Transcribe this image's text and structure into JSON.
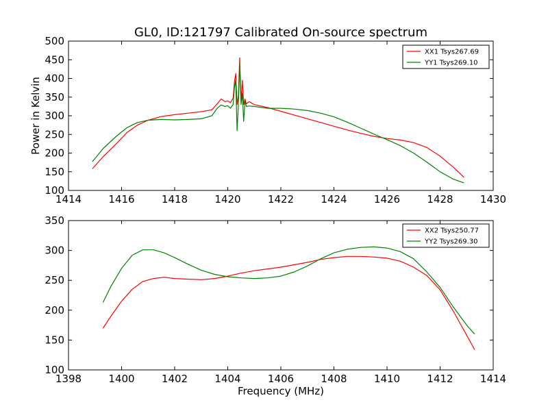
{
  "title": "GL0, ID:121797 Calibrated On-source spectrum",
  "chart_data": [
    {
      "type": "line",
      "ylabel": "Power in Kelvin",
      "xlabel": "",
      "xlim": [
        1414,
        1430
      ],
      "ylim": [
        100,
        500
      ],
      "xticks": [
        "1414",
        "1416",
        "1418",
        "1420",
        "1422",
        "1424",
        "1426",
        "1428",
        "1430"
      ],
      "yticks": [
        "100",
        "150",
        "200",
        "250",
        "300",
        "350",
        "400",
        "450",
        "500"
      ],
      "legend_position": "top-right",
      "series": [
        {
          "name": "XX1 Tsys267.69",
          "color": "#ff0000",
          "x": [
            1414.9,
            1415.3,
            1415.8,
            1416.2,
            1416.6,
            1417.0,
            1417.5,
            1418.0,
            1418.5,
            1419.0,
            1419.4,
            1419.6,
            1419.75,
            1419.9,
            1420.0,
            1420.1,
            1420.2,
            1420.25,
            1420.3,
            1420.35,
            1420.4,
            1420.45,
            1420.5,
            1420.55,
            1420.6,
            1420.65,
            1420.7,
            1420.8,
            1421.0,
            1421.5,
            1422.0,
            1422.5,
            1423.0,
            1423.5,
            1424.0,
            1424.5,
            1425.0,
            1425.5,
            1426.0,
            1426.5,
            1427.0,
            1427.5,
            1428.0,
            1428.5,
            1428.9
          ],
          "y": [
            158,
            190,
            225,
            255,
            275,
            288,
            298,
            303,
            307,
            311,
            316,
            332,
            345,
            338,
            340,
            335,
            347,
            390,
            413,
            330,
            355,
            455,
            340,
            395,
            330,
            345,
            332,
            338,
            330,
            322,
            312,
            302,
            292,
            282,
            272,
            262,
            253,
            245,
            239,
            235,
            228,
            215,
            192,
            162,
            135
          ]
        },
        {
          "name": "YY1 Tsys269.10",
          "color": "#008000",
          "x": [
            1414.9,
            1415.3,
            1415.8,
            1416.2,
            1416.6,
            1417.0,
            1417.5,
            1418.0,
            1418.5,
            1419.0,
            1419.4,
            1419.6,
            1419.75,
            1419.9,
            1420.0,
            1420.1,
            1420.2,
            1420.25,
            1420.3,
            1420.35,
            1420.4,
            1420.45,
            1420.5,
            1420.55,
            1420.6,
            1420.65,
            1420.7,
            1420.8,
            1421.0,
            1421.5,
            1422.0,
            1422.5,
            1423.0,
            1423.5,
            1424.0,
            1424.5,
            1425.0,
            1425.5,
            1426.0,
            1426.5,
            1427.0,
            1427.5,
            1428.0,
            1428.5,
            1428.9
          ],
          "y": [
            177,
            212,
            245,
            268,
            282,
            288,
            290,
            289,
            290,
            292,
            300,
            320,
            329,
            325,
            327,
            320,
            330,
            375,
            395,
            260,
            330,
            440,
            330,
            360,
            285,
            340,
            325,
            326,
            325,
            320,
            320,
            318,
            314,
            307,
            297,
            283,
            267,
            251,
            236,
            220,
            200,
            176,
            150,
            130,
            120
          ]
        }
      ]
    },
    {
      "type": "line",
      "ylabel": "",
      "xlabel": "Frequency (MHz)",
      "xlim": [
        1398,
        1414
      ],
      "ylim": [
        100,
        350
      ],
      "xticks": [
        "1398",
        "1400",
        "1402",
        "1404",
        "1406",
        "1408",
        "1410",
        "1412",
        "1414"
      ],
      "yticks": [
        "100",
        "150",
        "200",
        "250",
        "300",
        "350"
      ],
      "legend_position": "top-right",
      "series": [
        {
          "name": "XX2 Tsys250.77",
          "color": "#ff0000",
          "x": [
            1399.3,
            1399.6,
            1400.0,
            1400.4,
            1400.8,
            1401.2,
            1401.6,
            1402.0,
            1402.5,
            1403.0,
            1403.5,
            1404.0,
            1404.5,
            1405.0,
            1405.5,
            1406.0,
            1406.5,
            1407.0,
            1407.5,
            1408.0,
            1408.5,
            1409.0,
            1409.5,
            1410.0,
            1410.5,
            1411.0,
            1411.5,
            1412.0,
            1412.5,
            1413.0,
            1413.3
          ],
          "y": [
            170,
            190,
            215,
            235,
            248,
            253,
            255,
            253,
            252,
            251,
            253,
            257,
            262,
            266,
            269,
            272,
            276,
            280,
            285,
            288,
            290,
            290,
            289,
            287,
            282,
            272,
            258,
            234,
            198,
            158,
            134
          ]
        },
        {
          "name": "YY2 Tsys269.30",
          "color": "#008000",
          "x": [
            1399.3,
            1399.6,
            1400.0,
            1400.4,
            1400.8,
            1401.2,
            1401.6,
            1402.0,
            1402.5,
            1403.0,
            1403.5,
            1404.0,
            1404.5,
            1405.0,
            1405.5,
            1406.0,
            1406.5,
            1407.0,
            1407.5,
            1408.0,
            1408.5,
            1409.0,
            1409.5,
            1410.0,
            1410.5,
            1411.0,
            1411.5,
            1412.0,
            1412.5,
            1413.0,
            1413.3
          ],
          "y": [
            213,
            240,
            270,
            292,
            301,
            301,
            296,
            288,
            277,
            267,
            260,
            256,
            254,
            253,
            254,
            257,
            264,
            274,
            286,
            296,
            302,
            305,
            306,
            304,
            298,
            286,
            264,
            238,
            205,
            175,
            160
          ]
        }
      ]
    }
  ]
}
